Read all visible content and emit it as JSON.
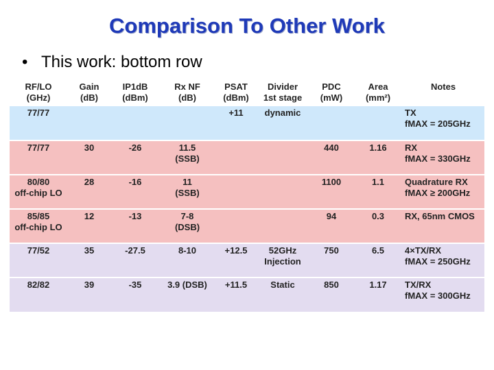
{
  "title": "Comparison To Other Work",
  "bullet": {
    "marker": "•",
    "text": "This work:  bottom row"
  },
  "table": {
    "headers": [
      {
        "line1": "RF/LO",
        "line2": "(GHz)"
      },
      {
        "line1": "Gain",
        "line2": "(dB)"
      },
      {
        "line1": "IP1dB",
        "line2": "(dBm)"
      },
      {
        "line1": "Rx NF",
        "line2": "(dB)"
      },
      {
        "line1": "PSAT",
        "line2": "(dBm)"
      },
      {
        "line1": "Divider",
        "line2": "1st stage"
      },
      {
        "line1": "PDC",
        "line2": "(mW)"
      },
      {
        "line1": "Area",
        "line2": "(mm²)"
      },
      {
        "line1": "Notes",
        "line2": ""
      }
    ],
    "rows": [
      {
        "style": "blue",
        "cells": [
          [
            "77/77",
            ""
          ],
          [
            "",
            ""
          ],
          [
            "",
            ""
          ],
          [
            "",
            ""
          ],
          [
            "+11",
            ""
          ],
          [
            "dynamic",
            ""
          ],
          [
            "",
            ""
          ],
          [
            "",
            ""
          ]
        ],
        "note": [
          "TX",
          "fMAX = 205GHz"
        ]
      },
      {
        "style": "pink",
        "cells": [
          [
            "77/77",
            ""
          ],
          [
            "30",
            ""
          ],
          [
            "-26",
            ""
          ],
          [
            "11.5",
            "(SSB)"
          ],
          [
            "",
            ""
          ],
          [
            "",
            ""
          ],
          [
            "440",
            ""
          ],
          [
            "1.16",
            ""
          ]
        ],
        "note": [
          "RX",
          "fMAX = 330GHz"
        ]
      },
      {
        "style": "pink",
        "cells": [
          [
            "80/80",
            "off-chip LO"
          ],
          [
            "28",
            ""
          ],
          [
            "-16",
            ""
          ],
          [
            "11",
            "(SSB)"
          ],
          [
            "",
            ""
          ],
          [
            "",
            ""
          ],
          [
            "1100",
            ""
          ],
          [
            "1.1",
            ""
          ]
        ],
        "note": [
          "Quadrature RX",
          "fMAX ≥ 200GHz"
        ]
      },
      {
        "style": "pink",
        "cells": [
          [
            "85/85",
            "off-chip LO"
          ],
          [
            "12",
            ""
          ],
          [
            "-13",
            ""
          ],
          [
            "7-8",
            "(DSB)"
          ],
          [
            "",
            ""
          ],
          [
            "",
            ""
          ],
          [
            "94",
            ""
          ],
          [
            "0.3",
            ""
          ]
        ],
        "note": [
          "RX, 65nm CMOS",
          ""
        ]
      },
      {
        "style": "lav",
        "cells": [
          [
            "77/52",
            ""
          ],
          [
            "35",
            ""
          ],
          [
            "-27.5",
            ""
          ],
          [
            "8-10",
            ""
          ],
          [
            "+12.5",
            ""
          ],
          [
            "52GHz",
            "Injection"
          ],
          [
            "750",
            ""
          ],
          [
            "6.5",
            ""
          ]
        ],
        "note": [
          "4×TX/RX",
          "fMAX = 250GHz"
        ]
      },
      {
        "style": "lav",
        "cells": [
          [
            "82/82",
            ""
          ],
          [
            "39",
            ""
          ],
          [
            "-35",
            ""
          ],
          [
            "3.9 (DSB)",
            ""
          ],
          [
            "+11.5",
            ""
          ],
          [
            "Static",
            ""
          ],
          [
            "850",
            ""
          ],
          [
            "1.17",
            ""
          ]
        ],
        "note": [
          "TX/RX",
          "fMAX = 300GHz"
        ]
      }
    ]
  }
}
